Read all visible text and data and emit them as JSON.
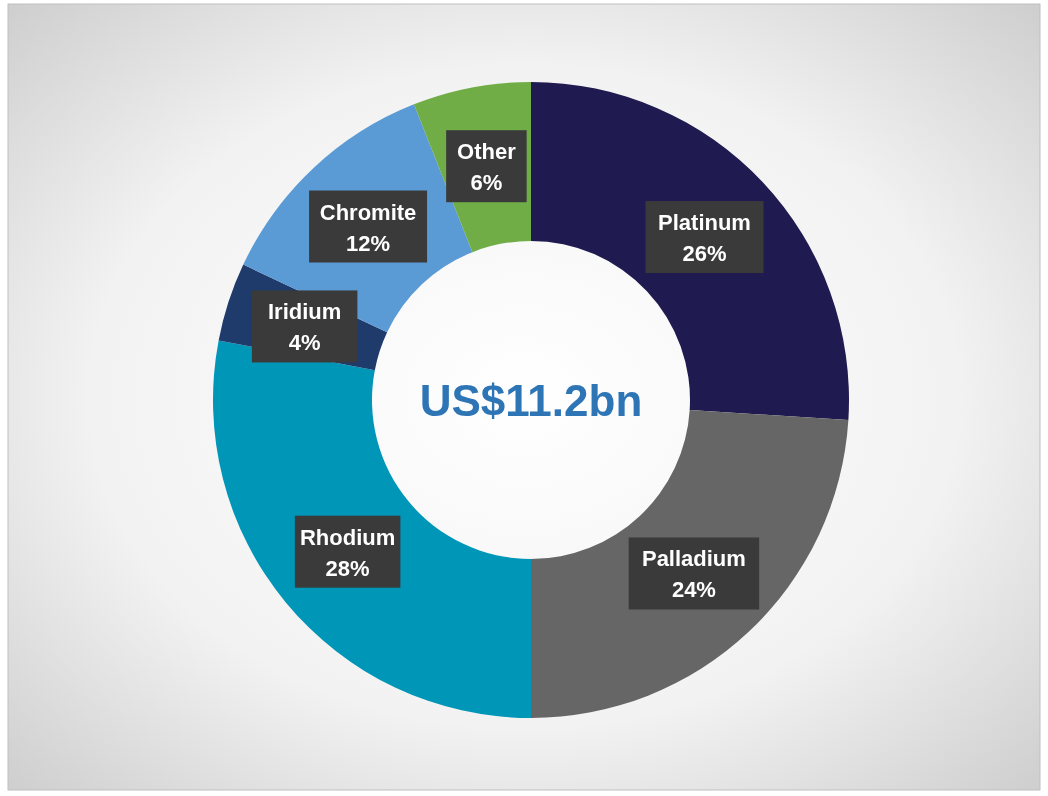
{
  "chart_data": {
    "type": "donut",
    "categories": [
      "Platinum",
      "Palladium",
      "Rhodium",
      "Iridium",
      "Chromite",
      "Other"
    ],
    "values": [
      26,
      24,
      28,
      4,
      12,
      6
    ],
    "colors": [
      "#1f1a4f",
      "#666666",
      "#0096b8",
      "#1f3b6b",
      "#5b9bd5",
      "#70ad47"
    ],
    "value_labels": [
      "26%",
      "24%",
      "28%",
      "4%",
      "12%",
      "6%"
    ],
    "annotations": [
      "US$11.2bn"
    ]
  }
}
